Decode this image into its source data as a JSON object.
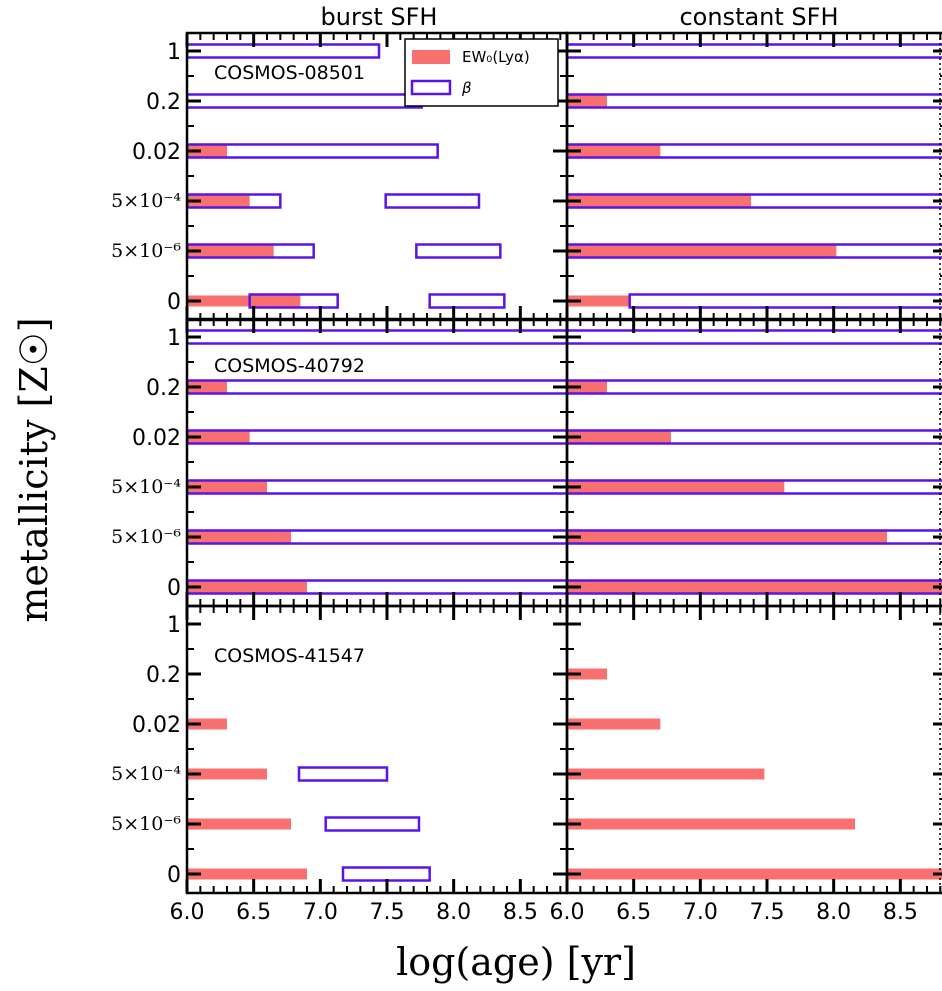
{
  "chart_data": {
    "type": "bar",
    "xlabel": "log(age) [yr]",
    "ylabel": "metallicity [Z☉]",
    "xlim": [
      6.0,
      8.85
    ],
    "x_ticks": [
      "6.0",
      "6.5",
      "7.0",
      "7.5",
      "8.0",
      "8.5"
    ],
    "y_categories": [
      "0",
      "5×10⁻⁶",
      "5×10⁻⁴",
      "0.02",
      "0.2",
      "1"
    ],
    "columns": [
      "burst SFH",
      "constant SFH"
    ],
    "legend": {
      "placement": "top-right of top-left panel",
      "entries": [
        "EW₀(Lyα)",
        "β"
      ]
    },
    "colors": {
      "ew": "#f87070",
      "beta": "#5a14e6"
    },
    "panels": [
      {
        "object": "COSMOS-08501",
        "column": "burst SFH",
        "ew": [
          [
            6.0,
            6.85
          ],
          [
            6.0,
            6.65
          ],
          [
            6.0,
            6.47
          ],
          [
            6.0,
            6.3
          ],
          null,
          null
        ],
        "beta": [
          [
            [
              6.47,
              7.13
            ],
            [
              7.82,
              8.38
            ]
          ],
          [
            [
              6.0,
              6.95
            ],
            [
              7.72,
              8.35
            ]
          ],
          [
            [
              6.0,
              6.7
            ],
            [
              7.49,
              8.19
            ]
          ],
          [
            [
              6.0,
              7.88
            ]
          ],
          [
            [
              6.0,
              7.76
            ]
          ],
          [
            [
              6.0,
              7.44
            ]
          ]
        ]
      },
      {
        "object": "COSMOS-08501",
        "column": "constant SFH",
        "ew": [
          [
            6.0,
            6.47
          ],
          [
            6.0,
            8.02
          ],
          [
            6.0,
            7.38
          ],
          [
            6.0,
            6.7
          ],
          [
            6.0,
            6.3
          ],
          null
        ],
        "beta": [
          [
            [
              6.47,
              8.85
            ]
          ],
          [
            [
              6.0,
              8.85
            ]
          ],
          [
            [
              6.0,
              8.85
            ]
          ],
          [
            [
              6.0,
              8.85
            ]
          ],
          [
            [
              6.0,
              8.85
            ]
          ],
          [
            [
              6.0,
              8.85
            ]
          ]
        ]
      },
      {
        "object": "COSMOS-40792",
        "column": "burst SFH",
        "ew": [
          [
            6.0,
            6.9
          ],
          [
            6.0,
            6.78
          ],
          [
            6.0,
            6.6
          ],
          [
            6.0,
            6.47
          ],
          [
            6.0,
            6.3
          ],
          null
        ],
        "beta": [
          [
            [
              6.0,
              8.85
            ]
          ],
          [
            [
              6.0,
              8.85
            ]
          ],
          [
            [
              6.0,
              8.85
            ]
          ],
          [
            [
              6.0,
              8.85
            ]
          ],
          [
            [
              6.0,
              8.85
            ]
          ],
          [
            [
              6.0,
              8.85
            ]
          ]
        ]
      },
      {
        "object": "COSMOS-40792",
        "column": "constant SFH",
        "ew": [
          [
            6.0,
            8.85
          ],
          [
            6.0,
            8.4
          ],
          [
            6.0,
            7.63
          ],
          [
            6.0,
            6.78
          ],
          [
            6.0,
            6.3
          ],
          null
        ],
        "beta": [
          [
            [
              6.0,
              8.85
            ]
          ],
          [
            [
              6.0,
              8.85
            ]
          ],
          [
            [
              6.0,
              8.85
            ]
          ],
          [
            [
              6.0,
              8.85
            ]
          ],
          [
            [
              6.0,
              8.85
            ]
          ],
          [
            [
              6.0,
              8.85
            ]
          ]
        ]
      },
      {
        "object": "COSMOS-41547",
        "column": "burst SFH",
        "ew": [
          [
            6.0,
            6.9
          ],
          [
            6.0,
            6.78
          ],
          [
            6.0,
            6.6
          ],
          [
            6.0,
            6.3
          ],
          null,
          null
        ],
        "beta": [
          [
            [
              7.17,
              7.82
            ]
          ],
          [
            [
              7.04,
              7.74
            ]
          ],
          [
            [
              6.84,
              7.5
            ]
          ],
          [],
          [],
          []
        ]
      },
      {
        "object": "COSMOS-41547",
        "column": "constant SFH",
        "ew": [
          [
            6.0,
            8.85
          ],
          [
            6.0,
            8.16
          ],
          [
            6.0,
            7.48
          ],
          [
            6.0,
            6.7
          ],
          [
            6.0,
            6.3
          ],
          null
        ],
        "beta": [
          [],
          [],
          [],
          [],
          [],
          []
        ]
      }
    ]
  }
}
